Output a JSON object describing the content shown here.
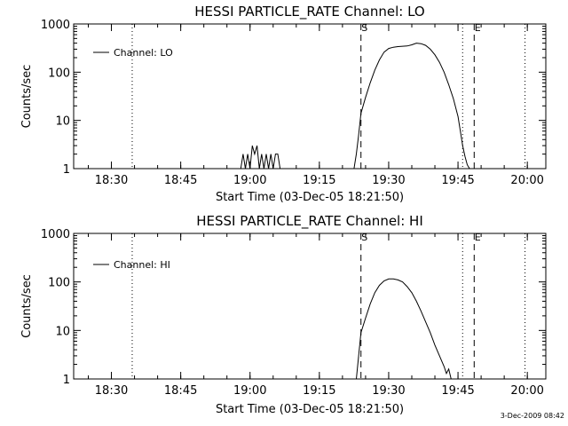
{
  "footer_timestamp": "3-Dec-2009 08:42",
  "chart_data": [
    {
      "type": "line",
      "title": "HESSI PARTICLE_RATE Channel: LO",
      "xlabel": "Start Time (03-Dec-05 18:21:50)",
      "ylabel": "Counts/sec",
      "x_ticks": [
        "18:30",
        "18:45",
        "19:00",
        "19:15",
        "19:30",
        "19:45",
        "20:00"
      ],
      "y_ticks": [
        "1",
        "10",
        "100",
        "1000"
      ],
      "y_scale": "log",
      "xlim": [
        "18:21:50",
        "20:04:00"
      ],
      "ylim": [
        1,
        1000
      ],
      "legend": "Channel: LO",
      "legend_position": "top-left",
      "markers": [
        {
          "label": "S",
          "time": "19:24:00",
          "style": "dashed"
        },
        {
          "label": "E",
          "time": "19:48:30",
          "style": "dashed"
        }
      ],
      "dotted_lines": [
        "18:34:30",
        "19:46:00",
        "19:59:30"
      ],
      "series": [
        {
          "x": [
            "18:58:00",
            "18:58:30",
            "18:59:00",
            "18:59:30",
            "19:00:00",
            "19:00:30",
            "19:01:00",
            "19:01:30",
            "19:02:00",
            "19:02:30",
            "19:03:00",
            "19:03:30",
            "19:04:00",
            "19:04:30",
            "19:05:00",
            "19:05:30",
            "19:06:00",
            "19:06:30",
            "19:22:30",
            "19:23:00",
            "19:23:30",
            "19:24:00",
            "19:25:00",
            "19:26:00",
            "19:27:00",
            "19:28:00",
            "19:29:00",
            "19:30:00",
            "19:31:00",
            "19:32:00",
            "19:33:00",
            "19:34:00",
            "19:35:00",
            "19:36:00",
            "19:37:00",
            "19:38:00",
            "19:39:00",
            "19:40:00",
            "19:41:00",
            "19:42:00",
            "19:43:00",
            "19:44:00",
            "19:45:00",
            "19:45:30",
            "19:46:00",
            "19:46:30",
            "19:47:00",
            "19:47:30"
          ],
          "values": [
            1,
            2,
            1,
            2,
            1,
            3,
            2,
            3,
            1,
            2,
            1,
            2,
            1,
            2,
            1,
            2,
            2,
            1,
            1,
            2,
            5,
            14,
            30,
            60,
            110,
            180,
            260,
            310,
            330,
            340,
            345,
            350,
            370,
            400,
            390,
            360,
            300,
            230,
            160,
            100,
            55,
            28,
            12,
            6,
            3,
            1.8,
            1.2,
            1
          ]
        }
      ]
    },
    {
      "type": "line",
      "title": "HESSI PARTICLE_RATE Channel: HI",
      "xlabel": "Start Time (03-Dec-05 18:21:50)",
      "ylabel": "Counts/sec",
      "x_ticks": [
        "18:30",
        "18:45",
        "19:00",
        "19:15",
        "19:30",
        "19:45",
        "20:00"
      ],
      "y_ticks": [
        "1",
        "10",
        "100",
        "1000"
      ],
      "y_scale": "log",
      "xlim": [
        "18:21:50",
        "20:04:00"
      ],
      "ylim": [
        1,
        1000
      ],
      "legend": "Channel: HI",
      "legend_position": "top-left",
      "markers": [
        {
          "label": "S",
          "time": "19:24:00",
          "style": "dashed"
        },
        {
          "label": "E",
          "time": "19:48:30",
          "style": "dashed"
        }
      ],
      "dotted_lines": [
        "18:34:30",
        "19:46:00",
        "19:59:30"
      ],
      "series": [
        {
          "x": [
            "19:23:00",
            "19:23:30",
            "19:24:00",
            "19:25:00",
            "19:26:00",
            "19:27:00",
            "19:28:00",
            "19:29:00",
            "19:30:00",
            "19:31:00",
            "19:32:00",
            "19:33:00",
            "19:34:00",
            "19:35:00",
            "19:36:00",
            "19:37:00",
            "19:38:00",
            "19:39:00",
            "19:40:00",
            "19:41:00",
            "19:42:00",
            "19:42:30",
            "19:43:00",
            "19:43:30"
          ],
          "values": [
            1,
            3,
            9,
            18,
            35,
            60,
            85,
            105,
            115,
            115,
            110,
            100,
            80,
            60,
            40,
            25,
            15,
            9,
            5,
            3,
            1.8,
            1.3,
            1.6,
            1
          ]
        }
      ]
    }
  ]
}
